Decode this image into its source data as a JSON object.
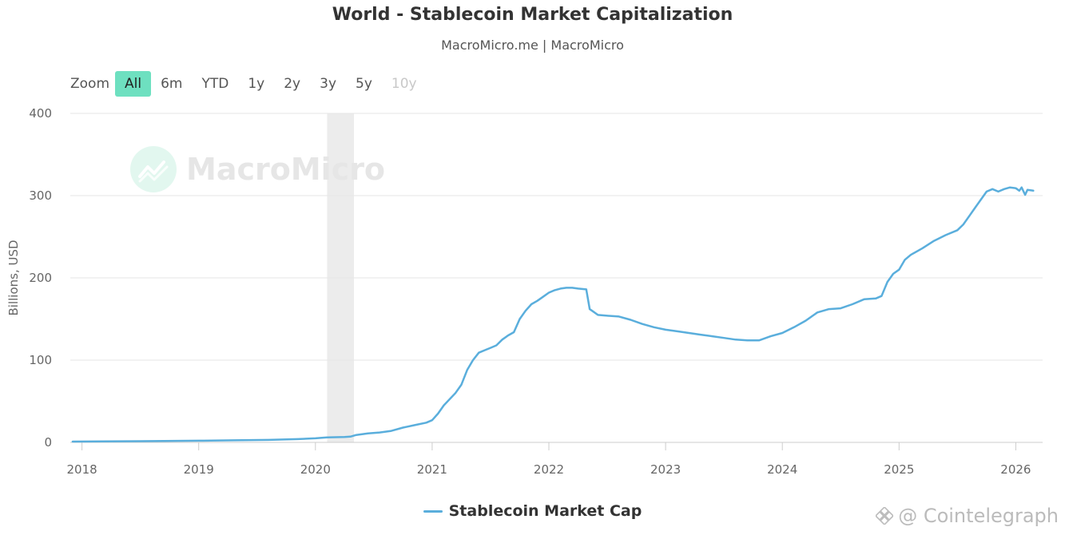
{
  "header": {
    "title": "World - Stablecoin Market Capitalization",
    "subtitle": "MacroMicro.me | MacroMicro"
  },
  "zoom": {
    "label": "Zoom",
    "options": [
      {
        "label": "All",
        "state": "active"
      },
      {
        "label": "6m",
        "state": "normal"
      },
      {
        "label": "YTD",
        "state": "normal"
      },
      {
        "label": "1y",
        "state": "normal"
      },
      {
        "label": "2y",
        "state": "normal"
      },
      {
        "label": "3y",
        "state": "normal"
      },
      {
        "label": "5y",
        "state": "normal"
      },
      {
        "label": "10y",
        "state": "disabled"
      }
    ]
  },
  "watermark": {
    "text": "MacroMicro"
  },
  "credit": {
    "text": "@ Cointelegraph",
    "icon": "binance-diamond-icon"
  },
  "colors": {
    "series": "#5aaedc",
    "active_zoom": "#6ee0c0",
    "grid": "#e6e6e6",
    "band": "#ececec"
  },
  "chart_data": {
    "type": "line",
    "title": "World - Stablecoin Market Capitalization",
    "subtitle": "MacroMicro.me | MacroMicro",
    "ylabel": "Billions, USD",
    "xlabel": "",
    "ylim": [
      0,
      400
    ],
    "yticks": [
      0,
      100,
      200,
      300,
      400
    ],
    "xticks": [
      "2018",
      "2019",
      "2020",
      "2021",
      "2022",
      "2023",
      "2024",
      "2025",
      "2026"
    ],
    "xlim": [
      2017.9,
      2026.23
    ],
    "grid": true,
    "legend": "bottom-center",
    "shaded_band": {
      "from": 2020.1,
      "to": 2020.33
    },
    "series": [
      {
        "name": "Stablecoin Market Cap",
        "x": [
          2017.92,
          2018.5,
          2019.0,
          2019.3,
          2019.6,
          2019.85,
          2020.0,
          2020.1,
          2020.25,
          2020.3,
          2020.35,
          2020.45,
          2020.55,
          2020.65,
          2020.75,
          2020.85,
          2020.95,
          2021.0,
          2021.05,
          2021.1,
          2021.2,
          2021.25,
          2021.3,
          2021.35,
          2021.4,
          2021.45,
          2021.5,
          2021.55,
          2021.6,
          2021.65,
          2021.7,
          2021.75,
          2021.8,
          2021.85,
          2021.9,
          2021.95,
          2022.0,
          2022.05,
          2022.1,
          2022.15,
          2022.2,
          2022.25,
          2022.32,
          2022.35,
          2022.37,
          2022.42,
          2022.5,
          2022.6,
          2022.7,
          2022.8,
          2022.9,
          2023.0,
          2023.1,
          2023.2,
          2023.3,
          2023.4,
          2023.5,
          2023.6,
          2023.7,
          2023.8,
          2023.9,
          2024.0,
          2024.1,
          2024.2,
          2024.3,
          2024.4,
          2024.5,
          2024.6,
          2024.7,
          2024.8,
          2024.85,
          2024.9,
          2024.95,
          2025.0,
          2025.05,
          2025.1,
          2025.2,
          2025.3,
          2025.4,
          2025.5,
          2025.55,
          2025.6,
          2025.65,
          2025.7,
          2025.75,
          2025.8,
          2025.85,
          2025.9,
          2025.95,
          2026.0,
          2026.03,
          2026.05,
          2026.08,
          2026.1,
          2026.15
        ],
        "y": [
          1,
          1.5,
          2,
          2.5,
          3,
          4,
          5,
          6,
          6.5,
          7,
          9,
          11,
          12,
          14,
          18,
          21,
          24,
          27,
          35,
          45,
          60,
          70,
          88,
          100,
          109,
          112,
          115,
          118,
          125,
          130,
          134,
          150,
          160,
          168,
          172,
          177,
          182,
          185,
          187,
          188,
          188,
          187,
          186,
          162,
          160,
          155,
          154,
          153,
          149,
          144,
          140,
          137,
          135,
          133,
          131,
          129,
          127,
          125,
          124,
          124,
          129,
          133,
          140,
          148,
          158,
          162,
          163,
          168,
          174,
          175,
          178,
          195,
          205,
          210,
          222,
          228,
          236,
          245,
          252,
          258,
          265,
          275,
          285,
          295,
          305,
          308,
          305,
          308,
          310,
          309,
          306,
          310,
          301,
          307,
          306
        ]
      }
    ]
  }
}
